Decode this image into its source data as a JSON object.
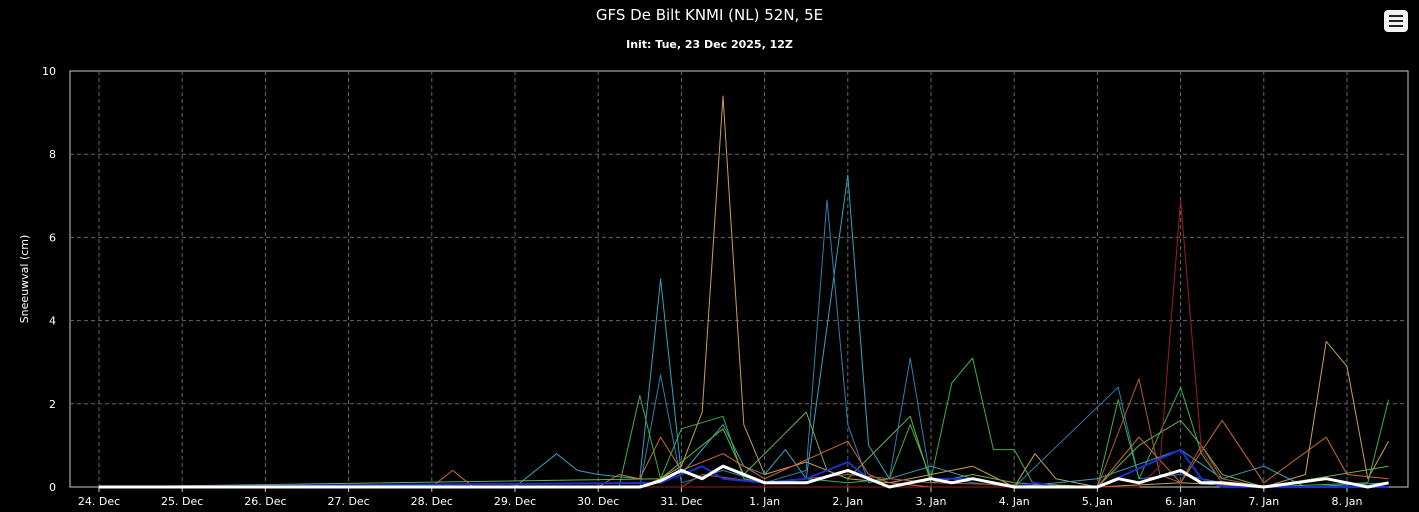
{
  "header": {
    "title": "GFS De Bilt KNMI (NL) 52N, 5E",
    "subtitle": "Init: Tue, 23 Dec 2025, 12Z"
  },
  "menu": {
    "icon": "hamburger-menu-icon"
  },
  "chart_data": {
    "type": "line",
    "title": "GFS De Bilt KNMI (NL) 52N, 5E",
    "subtitle": "Init: Tue, 23 Dec 2025, 12Z",
    "xlabel": "",
    "ylabel": "Sneeuwval (cm)",
    "ylim": [
      0,
      10
    ],
    "yticks": [
      0,
      2,
      4,
      6,
      8,
      10
    ],
    "x_tick_labels": [
      "24. Dec",
      "25. Dec",
      "26. Dec",
      "27. Dec",
      "28. Dec",
      "29. Dec",
      "30. Dec",
      "31. Dec",
      "1. Jan",
      "2. Jan",
      "3. Jan",
      "4. Jan",
      "5. Jan",
      "6. Jan",
      "7. Jan",
      "8. Jan"
    ],
    "x_unit": "days since 24. Dec 00Z",
    "xlim": [
      -0.2,
      15.5
    ],
    "grid": true,
    "background": "#000000",
    "series": [
      {
        "color": "#c8a050",
        "width": 1,
        "points": [
          [
            0,
            0
          ],
          [
            6.5,
            0
          ],
          [
            6.75,
            0.2
          ],
          [
            7,
            0.5
          ],
          [
            7.25,
            1.8
          ],
          [
            7.5,
            9.4
          ],
          [
            7.75,
            1.5
          ],
          [
            8,
            0.3
          ],
          [
            8.5,
            0.6
          ],
          [
            9,
            0.2
          ],
          [
            9.5,
            0.1
          ],
          [
            10,
            0.3
          ],
          [
            10.5,
            0.5
          ],
          [
            11,
            0
          ],
          [
            11.25,
            0.8
          ],
          [
            11.5,
            0.2
          ],
          [
            12,
            0
          ],
          [
            13,
            0.1
          ],
          [
            14,
            0
          ],
          [
            14.5,
            0.3
          ],
          [
            14.75,
            3.5
          ],
          [
            15,
            2.9
          ],
          [
            15.25,
            0.2
          ],
          [
            15.5,
            1.1
          ]
        ]
      },
      {
        "color": "#3aa0c0",
        "width": 1,
        "points": [
          [
            0,
            0
          ],
          [
            5,
            0
          ],
          [
            5.5,
            0.8
          ],
          [
            5.75,
            0.4
          ],
          [
            6,
            0.3
          ],
          [
            6.5,
            0.2
          ],
          [
            6.75,
            5.0
          ],
          [
            7,
            0.3
          ],
          [
            7.5,
            1.5
          ],
          [
            7.75,
            0.5
          ],
          [
            8,
            0.3
          ],
          [
            8.25,
            0.9
          ],
          [
            8.5,
            0.2
          ],
          [
            9,
            7.5
          ],
          [
            9.25,
            1.0
          ],
          [
            9.5,
            0.2
          ],
          [
            10,
            0.5
          ],
          [
            10.5,
            0.2
          ],
          [
            11,
            0
          ],
          [
            12,
            0.2
          ],
          [
            13,
            0.9
          ],
          [
            13.5,
            0.2
          ],
          [
            14,
            0.5
          ],
          [
            14.5,
            0
          ],
          [
            15.5,
            0.1
          ]
        ]
      },
      {
        "color": "#2f7fb0",
        "width": 1,
        "points": [
          [
            0,
            0
          ],
          [
            6.5,
            0
          ],
          [
            6.75,
            2.7
          ],
          [
            7,
            0.1
          ],
          [
            7.5,
            0.4
          ],
          [
            8,
            0.1
          ],
          [
            8.5,
            0.4
          ],
          [
            8.75,
            6.9
          ],
          [
            9,
            1.5
          ],
          [
            9.25,
            0.1
          ],
          [
            9.5,
            0.2
          ],
          [
            9.75,
            3.1
          ],
          [
            10,
            0.1
          ],
          [
            10.25,
            0.2
          ],
          [
            10.5,
            0.1
          ],
          [
            11,
            0
          ],
          [
            12.25,
            2.4
          ],
          [
            12.5,
            0.2
          ],
          [
            13,
            0.3
          ],
          [
            13.5,
            0.1
          ],
          [
            14,
            0
          ],
          [
            15.5,
            0
          ]
        ]
      },
      {
        "color": "#3cb04c",
        "width": 1,
        "points": [
          [
            0,
            0
          ],
          [
            6.25,
            0
          ],
          [
            6.5,
            2.2
          ],
          [
            6.75,
            0.2
          ],
          [
            7,
            1.4
          ],
          [
            7.5,
            1.7
          ],
          [
            7.75,
            0.2
          ],
          [
            8,
            0.1
          ],
          [
            8.5,
            0.2
          ],
          [
            9,
            0.1
          ],
          [
            9.5,
            0.2
          ],
          [
            9.75,
            1.5
          ],
          [
            10,
            0.2
          ],
          [
            10.25,
            2.5
          ],
          [
            10.5,
            3.1
          ],
          [
            10.75,
            0.9
          ],
          [
            11,
            0.9
          ],
          [
            11.25,
            0
          ],
          [
            12,
            0
          ],
          [
            12.25,
            2.1
          ],
          [
            12.5,
            0.2
          ],
          [
            13,
            2.4
          ],
          [
            13.25,
            0.8
          ],
          [
            13.5,
            0.1
          ],
          [
            14,
            0
          ],
          [
            15.25,
            0.1
          ],
          [
            15.5,
            2.1
          ]
        ]
      },
      {
        "color": "#6ab04a",
        "width": 1,
        "points": [
          [
            0,
            0
          ],
          [
            6.75,
            0.2
          ],
          [
            7,
            0.6
          ],
          [
            7.5,
            1.4
          ],
          [
            7.75,
            0.3
          ],
          [
            8.5,
            1.8
          ],
          [
            8.75,
            0.4
          ],
          [
            9,
            0.2
          ],
          [
            9.75,
            1.7
          ],
          [
            10,
            0.1
          ],
          [
            10.5,
            0.3
          ],
          [
            11,
            0.1
          ],
          [
            12,
            0
          ],
          [
            12.5,
            1.0
          ],
          [
            13,
            1.6
          ],
          [
            13.25,
            1.0
          ],
          [
            13.5,
            0.3
          ],
          [
            14,
            0
          ],
          [
            15.5,
            0.5
          ]
        ]
      },
      {
        "color": "#d06a30",
        "width": 1,
        "points": [
          [
            0,
            0
          ],
          [
            4,
            0
          ],
          [
            4.25,
            0.4
          ],
          [
            4.5,
            0
          ],
          [
            6,
            0
          ],
          [
            6.25,
            0.3
          ],
          [
            6.5,
            0.2
          ],
          [
            6.75,
            1.2
          ],
          [
            7,
            0.4
          ],
          [
            7.5,
            0.8
          ],
          [
            8,
            0.2
          ],
          [
            9,
            1.1
          ],
          [
            9.25,
            0.3
          ],
          [
            9.5,
            0.1
          ],
          [
            10,
            0
          ],
          [
            12,
            0
          ],
          [
            12.5,
            1.2
          ],
          [
            13,
            0.1
          ],
          [
            13.5,
            1.6
          ],
          [
            14,
            0.1
          ],
          [
            14.75,
            1.2
          ],
          [
            15,
            0.3
          ],
          [
            15.5,
            0.2
          ]
        ]
      },
      {
        "color": "#b05a40",
        "width": 1,
        "points": [
          [
            0,
            0
          ],
          [
            7,
            0
          ],
          [
            7.25,
            0.3
          ],
          [
            8,
            0.1
          ],
          [
            9,
            0.3
          ],
          [
            10,
            0.1
          ],
          [
            12,
            0
          ],
          [
            12.5,
            2.6
          ],
          [
            12.75,
            0.3
          ],
          [
            13,
            0.1
          ],
          [
            13.25,
            1.0
          ],
          [
            13.5,
            0.2
          ],
          [
            14,
            0
          ],
          [
            15.5,
            0
          ]
        ]
      },
      {
        "color": "#9a2020",
        "width": 1,
        "points": [
          [
            0,
            0
          ],
          [
            12.5,
            0
          ],
          [
            12.75,
            0.5
          ],
          [
            13,
            6.9
          ],
          [
            13.25,
            0.9
          ],
          [
            13.5,
            0.1
          ],
          [
            14,
            0
          ],
          [
            15.5,
            0
          ]
        ]
      },
      {
        "color": "#1a30d0",
        "width": 2,
        "points": [
          [
            0,
            0
          ],
          [
            6.75,
            0.1
          ],
          [
            7,
            0.3
          ],
          [
            7.25,
            0.5
          ],
          [
            7.5,
            0.2
          ],
          [
            8,
            0.1
          ],
          [
            8.5,
            0.2
          ],
          [
            9,
            0.6
          ],
          [
            9.25,
            0.2
          ],
          [
            9.5,
            0
          ],
          [
            10,
            0.2
          ],
          [
            10.5,
            0.2
          ],
          [
            10.75,
            0.1
          ],
          [
            11,
            0
          ],
          [
            11.25,
            0.1
          ],
          [
            11.5,
            0
          ],
          [
            12,
            0
          ],
          [
            13,
            0.9
          ],
          [
            13.25,
            0.2
          ],
          [
            13.5,
            0
          ],
          [
            15.5,
            0
          ]
        ]
      },
      {
        "color": "#ffffff",
        "width": 3,
        "points": [
          [
            0,
            0
          ],
          [
            6.5,
            0
          ],
          [
            6.75,
            0.15
          ],
          [
            7,
            0.4
          ],
          [
            7.25,
            0.2
          ],
          [
            7.5,
            0.5
          ],
          [
            8,
            0.1
          ],
          [
            8.5,
            0.1
          ],
          [
            9,
            0.4
          ],
          [
            9.25,
            0.2
          ],
          [
            9.5,
            0
          ],
          [
            10,
            0.2
          ],
          [
            10.25,
            0.1
          ],
          [
            10.5,
            0.2
          ],
          [
            10.75,
            0.1
          ],
          [
            11,
            0
          ],
          [
            12,
            0
          ],
          [
            12.25,
            0.2
          ],
          [
            12.5,
            0.1
          ],
          [
            13,
            0.4
          ],
          [
            13.25,
            0.1
          ],
          [
            13.5,
            0.1
          ],
          [
            14,
            0
          ],
          [
            14.75,
            0.2
          ],
          [
            15,
            0.1
          ],
          [
            15.25,
            0
          ],
          [
            15.5,
            0.1
          ]
        ]
      }
    ]
  }
}
